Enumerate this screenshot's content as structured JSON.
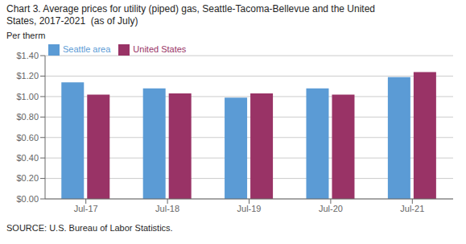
{
  "chart_data": {
    "type": "bar",
    "title": "Chart 3. Average prices for utility (piped) gas, Seattle-Tacoma-Bellevue and the United\nStates, 2017-2021  (as of July)",
    "y_label": "Per therm",
    "annotations": [
      "SOURCE: U.S. Bureau of Labor Statistics."
    ],
    "categories": [
      "Jul-17",
      "Jul-18",
      "Jul-19",
      "Jul-20",
      "Jul-21"
    ],
    "series": [
      {
        "name": "Seattle area",
        "color": "#5B9BD5",
        "values": [
          1.14,
          1.08,
          0.99,
          1.08,
          1.19
        ]
      },
      {
        "name": "United States",
        "color": "#993366",
        "values": [
          1.02,
          1.03,
          1.03,
          1.02,
          1.24
        ]
      }
    ],
    "ylim": [
      0,
      1.4
    ],
    "yticks": [
      {
        "value": 0,
        "label": "$0.00"
      },
      {
        "value": 0.2,
        "label": "$0.20"
      },
      {
        "value": 0.4,
        "label": "$0.40"
      },
      {
        "value": 0.6,
        "label": "$0.60"
      },
      {
        "value": 0.8,
        "label": "$0.80"
      },
      {
        "value": 1.0,
        "label": "$1.00"
      },
      {
        "value": 1.2,
        "label": "$1.20"
      },
      {
        "value": 1.4,
        "label": "$1.40"
      }
    ],
    "grid": true,
    "legend": "upper left"
  }
}
